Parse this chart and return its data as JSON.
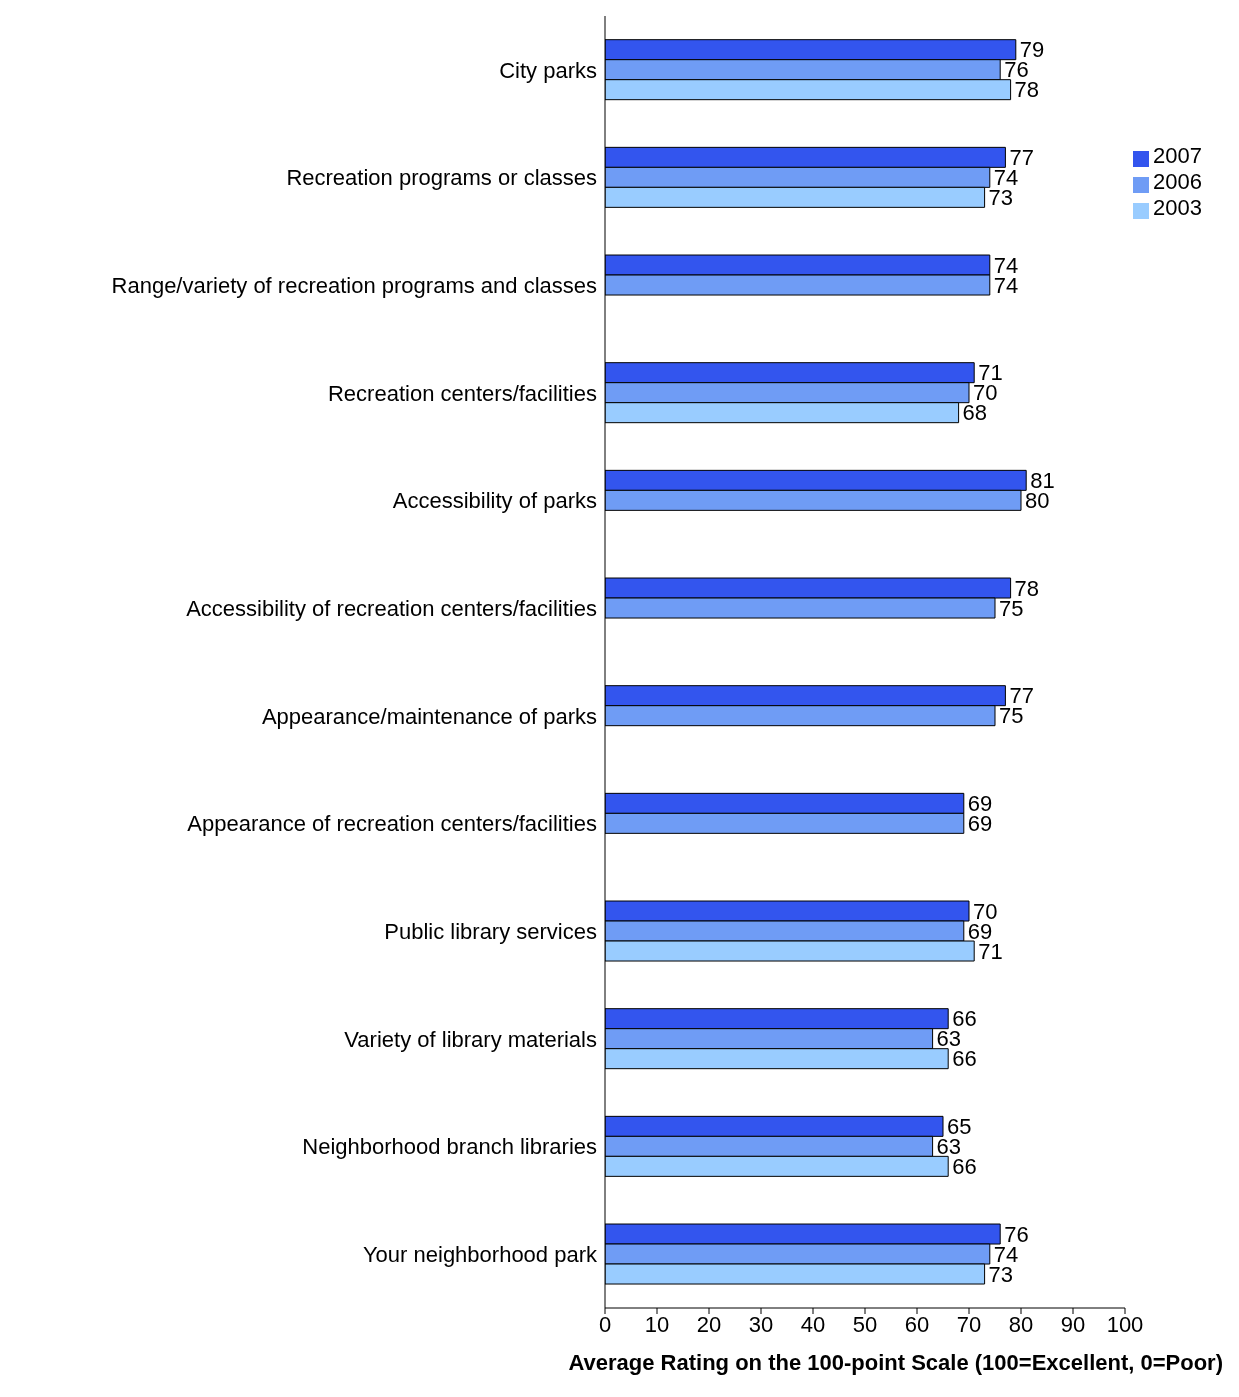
{
  "chart_data": {
    "type": "bar",
    "orientation": "horizontal",
    "xlabel": "Average Rating on the 100-point Scale (100=Excellent, 0=Poor)",
    "categories": [
      "City parks",
      "Recreation programs or classes",
      "Range/variety of recreation programs and classes",
      "Recreation centers/facilities",
      "Accessibility of parks",
      "Accessibility of recreation centers/facilities",
      "Appearance/maintenance of parks",
      "Appearance of recreation centers/facilities",
      "Public library services",
      "Variety of library materials",
      "Neighborhood branch libraries",
      "Your neighborhood park"
    ],
    "series": [
      {
        "name": "2007",
        "color": "#3355ee",
        "values": [
          79,
          77,
          74,
          71,
          81,
          78,
          77,
          69,
          70,
          66,
          65,
          76
        ]
      },
      {
        "name": "2006",
        "color": "#6f9cf5",
        "values": [
          76,
          74,
          74,
          70,
          80,
          75,
          75,
          69,
          69,
          63,
          63,
          74
        ]
      },
      {
        "name": "2003",
        "color": "#99ccff",
        "values": [
          78,
          73,
          null,
          68,
          null,
          null,
          null,
          null,
          71,
          66,
          66,
          73
        ]
      }
    ],
    "xlim": [
      0,
      100
    ],
    "xticks": [
      0,
      10,
      20,
      30,
      40,
      50,
      60,
      70,
      80,
      90,
      100
    ],
    "data_labels": true,
    "legend": "top right",
    "grid": false
  }
}
